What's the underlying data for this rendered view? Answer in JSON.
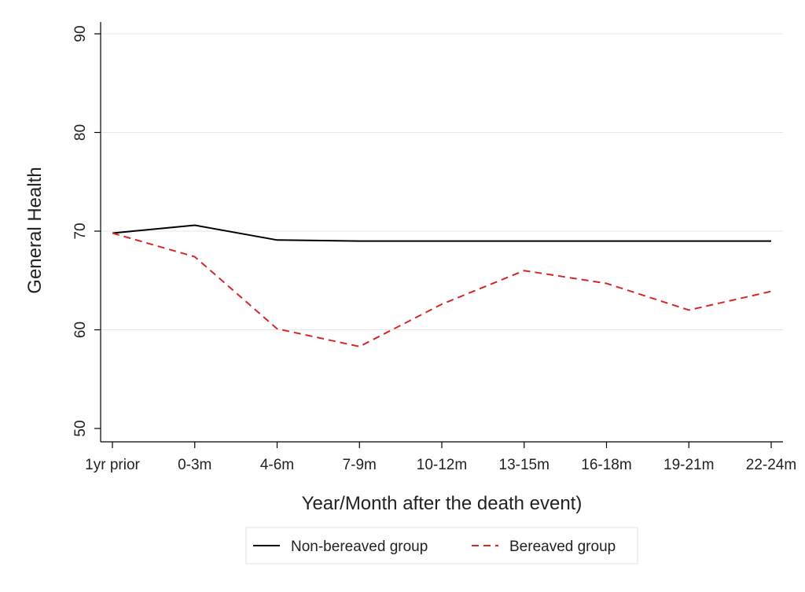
{
  "chart_data": {
    "type": "line",
    "title": "",
    "xlabel": "Year/Month after the death event)",
    "ylabel": "General Health",
    "categories": [
      "1yr prior",
      "0-3m",
      "4-6m",
      "7-9m",
      "10-12m",
      "13-15m",
      "16-18m",
      "19-21m",
      "22-24m"
    ],
    "ylim": [
      50,
      90
    ],
    "yticks": [
      50,
      60,
      70,
      80,
      90
    ],
    "grid": true,
    "legend_position": "bottom",
    "series": [
      {
        "name": "Non-bereaved group",
        "style": "solid",
        "color": "#000000",
        "values": [
          69.8,
          70.6,
          69.1,
          69.0,
          69.0,
          69.0,
          69.0,
          69.0,
          69.0
        ]
      },
      {
        "name": "Bereaved group",
        "style": "dashed",
        "color": "#d62728",
        "values": [
          69.8,
          67.4,
          60.1,
          58.3,
          62.6,
          66.0,
          64.7,
          62.0,
          63.9
        ]
      }
    ]
  }
}
